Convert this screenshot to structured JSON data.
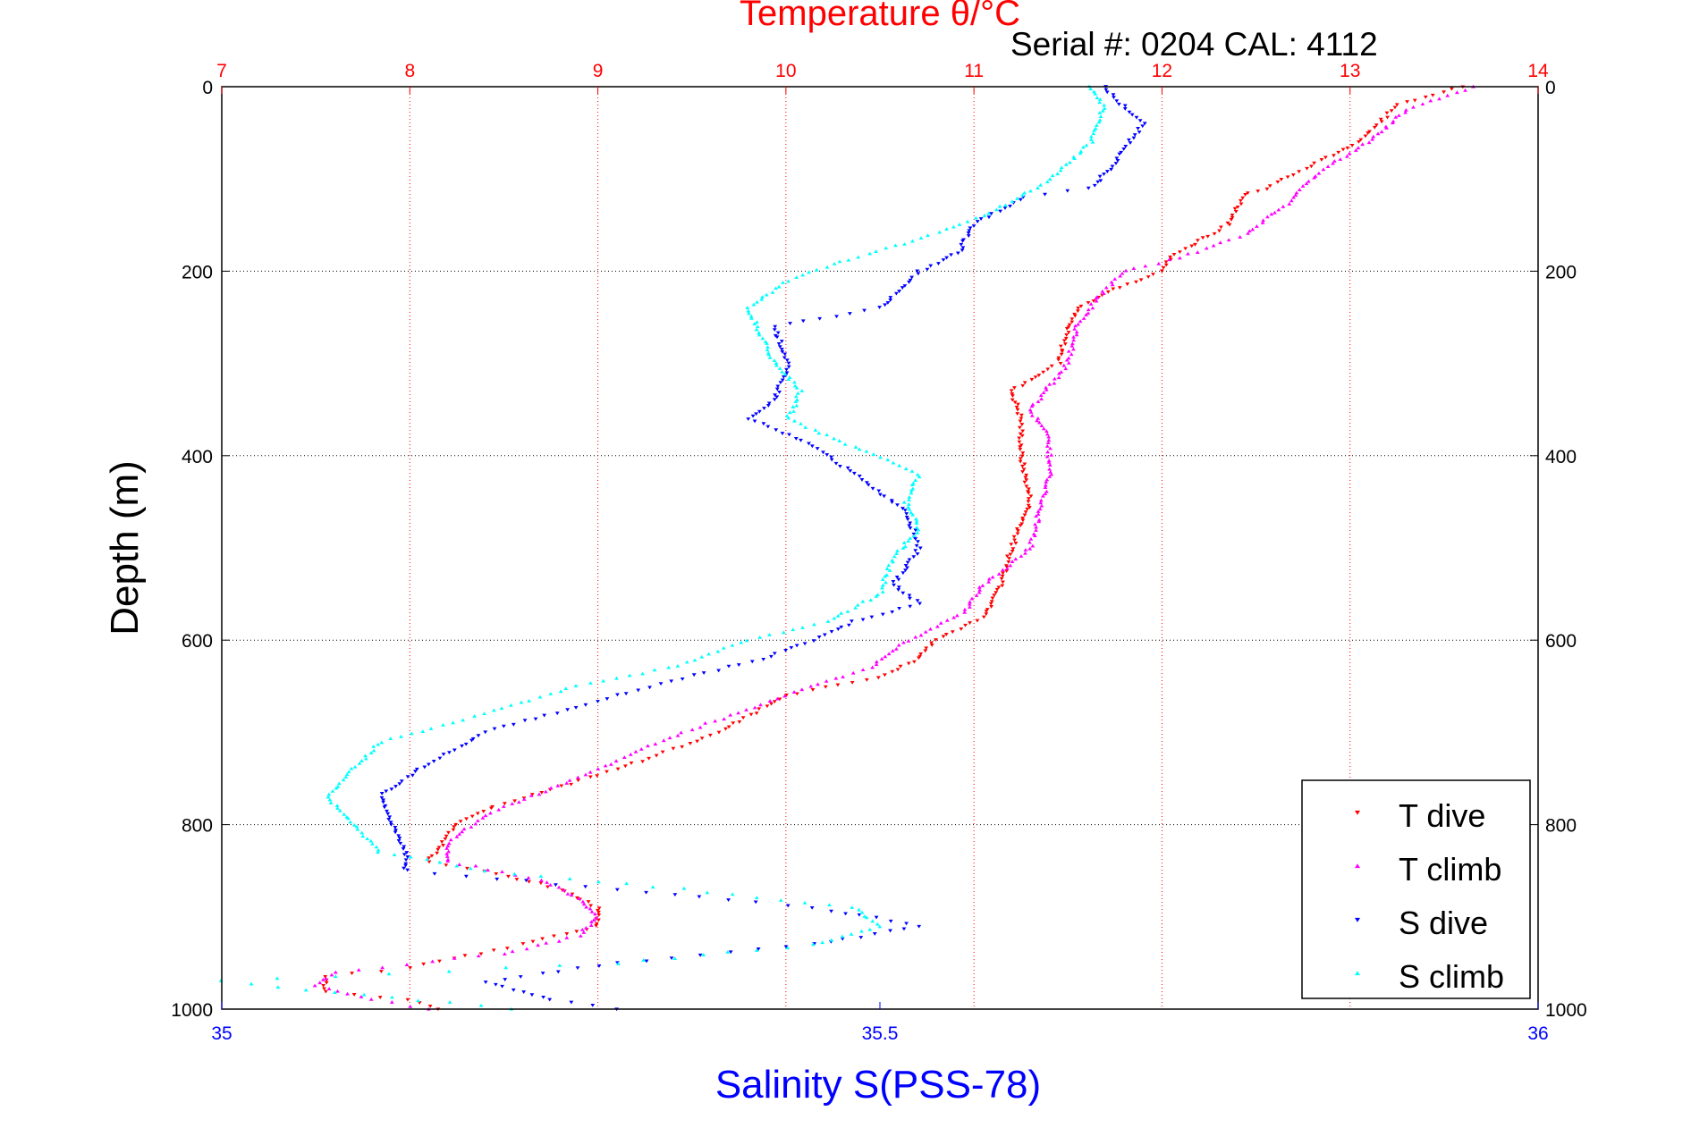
{
  "chart_data": {
    "type": "scatter",
    "title": "Temperature θ/°C",
    "subtitle": "Serial #: 0204  CAL: 4112",
    "xlabel_top": "Temperature θ/°C",
    "xlabel_bottom": "Salinity S(PSS-78)",
    "ylabel": "Depth (m)",
    "temperature_axis": {
      "range": [
        7,
        14
      ],
      "ticks": [
        "7",
        "8",
        "9",
        "10",
        "11",
        "12",
        "13",
        "14"
      ]
    },
    "salinity_axis": {
      "range": [
        35,
        36
      ],
      "ticks": [
        "35",
        "35.5",
        "36"
      ]
    },
    "depth_axis": {
      "range": [
        0,
        1000
      ],
      "inverted": true,
      "ticks": [
        "0",
        "200",
        "400",
        "600",
        "800",
        "1000"
      ]
    },
    "grid": true,
    "legend_position": "bottom-right",
    "colors": {
      "temperature_axis": "#ff0000",
      "salinity_axis": "#0000ff",
      "frame": "#000000"
    },
    "series": [
      {
        "name": "T dive",
        "axis": "temperature",
        "color": "#ff0000",
        "marker": "triangle-down",
        "points": [
          [
            0,
            13.6
          ],
          [
            20,
            13.25
          ],
          [
            60,
            13.05
          ],
          [
            80,
            12.85
          ],
          [
            110,
            12.55
          ],
          [
            115,
            12.45
          ],
          [
            150,
            12.35
          ],
          [
            185,
            12.05
          ],
          [
            200,
            12.0
          ],
          [
            220,
            11.75
          ],
          [
            240,
            11.55
          ],
          [
            260,
            11.5
          ],
          [
            300,
            11.45
          ],
          [
            330,
            11.2
          ],
          [
            360,
            11.25
          ],
          [
            400,
            11.25
          ],
          [
            450,
            11.3
          ],
          [
            500,
            11.2
          ],
          [
            540,
            11.15
          ],
          [
            575,
            11.05
          ],
          [
            600,
            10.8
          ],
          [
            620,
            10.7
          ],
          [
            640,
            10.5
          ],
          [
            660,
            10.0
          ],
          [
            700,
            9.65
          ],
          [
            740,
            9.1
          ],
          [
            780,
            8.45
          ],
          [
            800,
            8.25
          ],
          [
            840,
            8.1
          ],
          [
            850,
            8.4
          ],
          [
            870,
            8.8
          ],
          [
            890,
            9.0
          ],
          [
            910,
            9.0
          ],
          [
            930,
            8.6
          ],
          [
            955,
            8.0
          ],
          [
            965,
            7.55
          ],
          [
            980,
            7.55
          ],
          [
            990,
            8.0
          ],
          [
            1000,
            8.15
          ]
        ]
      },
      {
        "name": "T climb",
        "axis": "temperature",
        "color": "#ff00ff",
        "marker": "triangle-up",
        "points": [
          [
            0,
            13.65
          ],
          [
            25,
            13.3
          ],
          [
            60,
            13.1
          ],
          [
            90,
            12.85
          ],
          [
            130,
            12.65
          ],
          [
            160,
            12.45
          ],
          [
            185,
            12.1
          ],
          [
            200,
            11.8
          ],
          [
            230,
            11.65
          ],
          [
            260,
            11.55
          ],
          [
            300,
            11.5
          ],
          [
            350,
            11.3
          ],
          [
            380,
            11.4
          ],
          [
            420,
            11.4
          ],
          [
            460,
            11.35
          ],
          [
            500,
            11.3
          ],
          [
            540,
            11.05
          ],
          [
            570,
            10.95
          ],
          [
            600,
            10.65
          ],
          [
            630,
            10.45
          ],
          [
            660,
            10.0
          ],
          [
            700,
            9.45
          ],
          [
            740,
            9.0
          ],
          [
            790,
            8.4
          ],
          [
            820,
            8.2
          ],
          [
            840,
            8.2
          ],
          [
            860,
            8.7
          ],
          [
            880,
            8.9
          ],
          [
            900,
            9.0
          ],
          [
            920,
            8.9
          ],
          [
            940,
            8.5
          ],
          [
            960,
            7.6
          ],
          [
            975,
            7.5
          ],
          [
            990,
            7.8
          ],
          [
            1000,
            8.1
          ]
        ]
      },
      {
        "name": "S dive",
        "axis": "salinity",
        "color": "#0000ff",
        "marker": "triangle-down",
        "points": [
          [
            0,
            35.67
          ],
          [
            15,
            35.68
          ],
          [
            40,
            35.7
          ],
          [
            80,
            35.68
          ],
          [
            110,
            35.66
          ],
          [
            120,
            35.61
          ],
          [
            150,
            35.57
          ],
          [
            180,
            35.56
          ],
          [
            200,
            35.53
          ],
          [
            240,
            35.5
          ],
          [
            260,
            35.42
          ],
          [
            300,
            35.43
          ],
          [
            340,
            35.42
          ],
          [
            360,
            35.4
          ],
          [
            390,
            35.45
          ],
          [
            420,
            35.48
          ],
          [
            460,
            35.52
          ],
          [
            500,
            35.53
          ],
          [
            540,
            35.51
          ],
          [
            560,
            35.53
          ],
          [
            580,
            35.48
          ],
          [
            600,
            35.45
          ],
          [
            620,
            35.41
          ],
          [
            660,
            35.3
          ],
          [
            700,
            35.2
          ],
          [
            740,
            35.15
          ],
          [
            770,
            35.12
          ],
          [
            800,
            35.13
          ],
          [
            830,
            35.14
          ],
          [
            850,
            35.14
          ],
          [
            870,
            35.3
          ],
          [
            890,
            35.45
          ],
          [
            910,
            35.53
          ],
          [
            930,
            35.45
          ],
          [
            950,
            35.3
          ],
          [
            970,
            35.2
          ],
          [
            990,
            35.25
          ],
          [
            1000,
            35.3
          ]
        ]
      },
      {
        "name": "S climb",
        "axis": "salinity",
        "color": "#00ffff",
        "marker": "triangle-up",
        "points": [
          [
            0,
            35.66
          ],
          [
            20,
            35.67
          ],
          [
            60,
            35.66
          ],
          [
            100,
            35.63
          ],
          [
            140,
            35.58
          ],
          [
            170,
            35.52
          ],
          [
            190,
            35.47
          ],
          [
            210,
            35.43
          ],
          [
            240,
            35.4
          ],
          [
            270,
            35.41
          ],
          [
            300,
            35.42
          ],
          [
            330,
            35.44
          ],
          [
            360,
            35.43
          ],
          [
            390,
            35.48
          ],
          [
            420,
            35.53
          ],
          [
            450,
            35.52
          ],
          [
            480,
            35.53
          ],
          [
            510,
            35.51
          ],
          [
            550,
            35.5
          ],
          [
            580,
            35.46
          ],
          [
            600,
            35.4
          ],
          [
            630,
            35.34
          ],
          [
            650,
            35.27
          ],
          [
            680,
            35.2
          ],
          [
            710,
            35.12
          ],
          [
            740,
            35.1
          ],
          [
            770,
            35.08
          ],
          [
            800,
            35.1
          ],
          [
            830,
            35.12
          ],
          [
            850,
            35.2
          ],
          [
            870,
            35.35
          ],
          [
            890,
            35.48
          ],
          [
            910,
            35.5
          ],
          [
            930,
            35.45
          ],
          [
            950,
            35.3
          ],
          [
            970,
            35.0
          ],
          [
            990,
            35.15
          ],
          [
            1000,
            35.22
          ]
        ]
      }
    ],
    "legend": [
      "T dive",
      "T climb",
      "S dive",
      "S climb"
    ]
  }
}
